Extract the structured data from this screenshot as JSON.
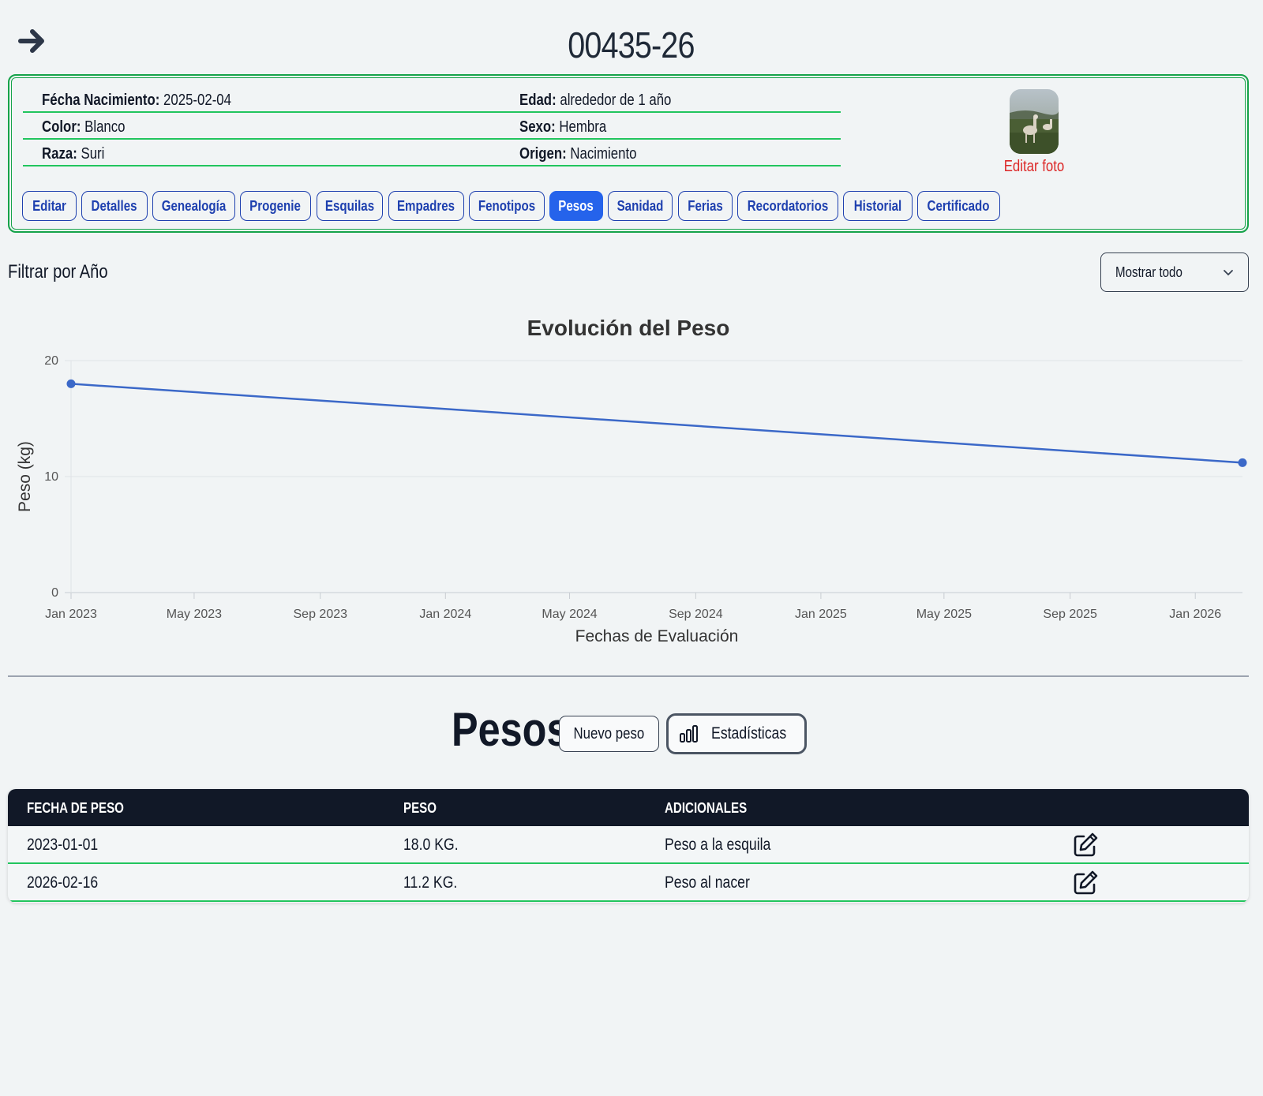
{
  "header": {
    "title": "00435-26"
  },
  "info": {
    "birth_label": "Fécha Nacimiento:",
    "birth_value": "2025-02-04",
    "age_label": "Edad:",
    "age_value": "alrededor de 1 año",
    "color_label": "Color:",
    "color_value": "Blanco",
    "sex_label": "Sexo:",
    "sex_value": "Hembra",
    "breed_label": "Raza:",
    "breed_value": "Suri",
    "origin_label": "Origen:",
    "origin_value": "Nacimiento",
    "edit_photo": "Editar foto"
  },
  "tabs": [
    {
      "label": "Editar"
    },
    {
      "label": "Detalles"
    },
    {
      "label": "Genealogía"
    },
    {
      "label": "Progenie"
    },
    {
      "label": "Esquilas"
    },
    {
      "label": "Empadres"
    },
    {
      "label": "Fenotipos"
    },
    {
      "label": "Pesos",
      "active": true
    },
    {
      "label": "Sanidad"
    },
    {
      "label": "Ferias"
    },
    {
      "label": "Recordatorios"
    },
    {
      "label": "Historial"
    },
    {
      "label": "Certificado"
    }
  ],
  "filter": {
    "label": "Filtrar por Año",
    "selected": "Mostrar todo"
  },
  "chart_data": {
    "type": "line",
    "title": "Evolución del Peso",
    "xlabel": "Fechas de Evaluación",
    "ylabel": "Peso (kg)",
    "x": [
      "2023-01-01",
      "2026-02-16"
    ],
    "series": [
      {
        "values": [
          18.0,
          11.2
        ]
      }
    ],
    "ylim": [
      0,
      20
    ],
    "yticks": [
      "0",
      "10",
      "20"
    ],
    "xticks": [
      "Jan 2023",
      "May 2023",
      "Sep 2023",
      "Jan 2024",
      "May 2024",
      "Sep 2024",
      "Jan 2025",
      "May 2025",
      "Sep 2025",
      "Jan 2026"
    ],
    "xtick_dates": [
      "2023-01-01",
      "2023-05-01",
      "2023-09-01",
      "2024-01-01",
      "2024-05-01",
      "2024-09-01",
      "2025-01-01",
      "2025-05-01",
      "2025-09-01",
      "2026-01-01"
    ],
    "grid": true,
    "color": "#3b68c8"
  },
  "pesos": {
    "title": "Pesos",
    "new_button": "Nuevo peso",
    "stats_button": "Estadísticas"
  },
  "table": {
    "headers": [
      "FECHA DE PESO",
      "PESO",
      "ADICIONALES"
    ],
    "rows": [
      {
        "date": "2023-01-01",
        "weight": "18.0 KG.",
        "notes": "Peso a la esquila"
      },
      {
        "date": "2026-02-16",
        "weight": "11.2 KG.",
        "notes": "Peso al nacer"
      }
    ]
  }
}
